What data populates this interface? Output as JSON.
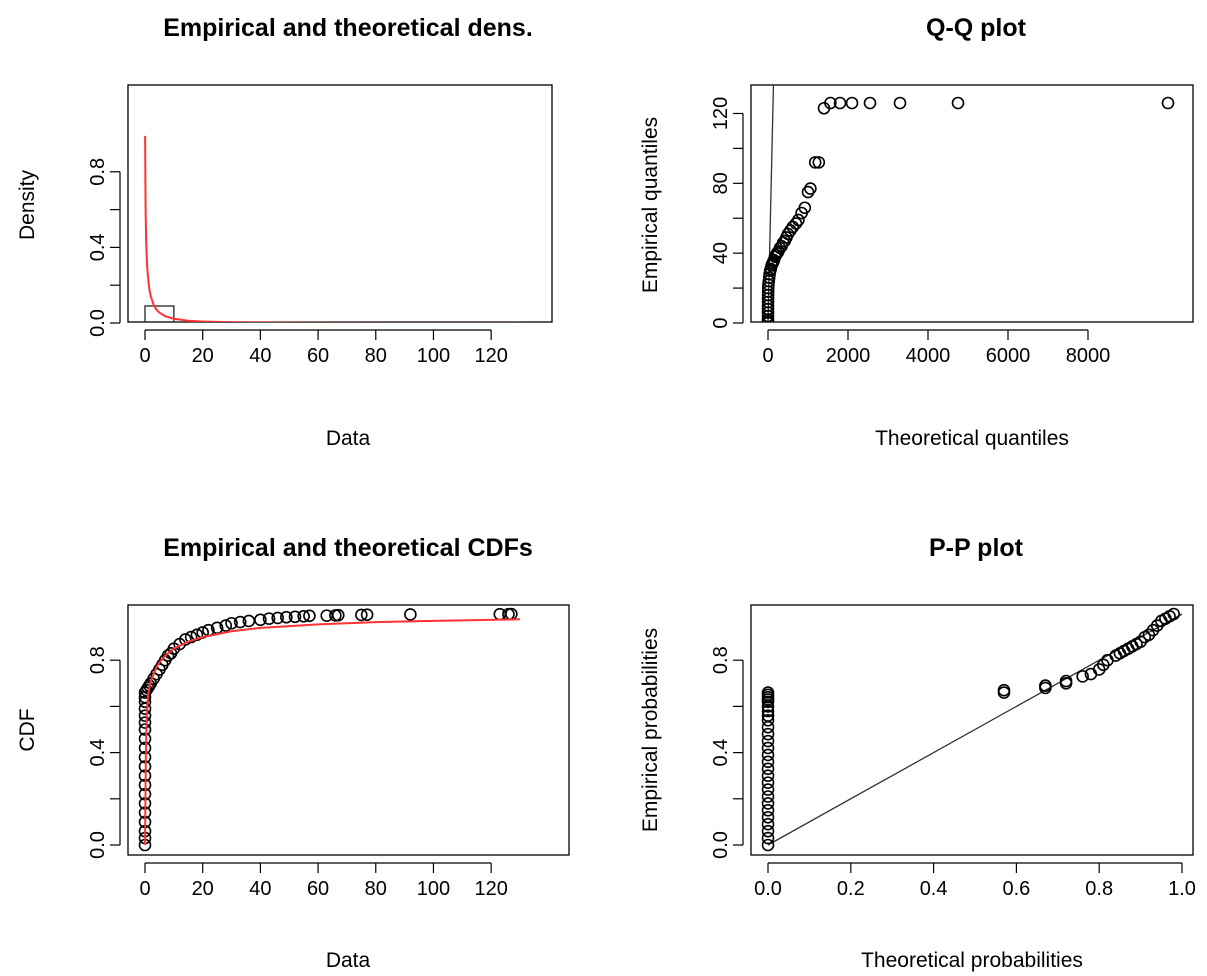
{
  "figure": {
    "panels": [
      {
        "id": "dens",
        "title": "Empirical and theoretical dens.",
        "xlabel": "Data",
        "ylabel": "Density"
      },
      {
        "id": "qq",
        "title": "Q-Q plot",
        "xlabel": "Theoretical quantiles",
        "ylabel": "Empirical quantiles"
      },
      {
        "id": "cdf",
        "title": "Empirical and theoretical CDFs",
        "xlabel": "Data",
        "ylabel": "CDF"
      },
      {
        "id": "pp",
        "title": "P-P plot",
        "xlabel": "Theoretical probabilities",
        "ylabel": "Empirical probabilities"
      }
    ]
  },
  "chart_data": [
    {
      "type": "line",
      "title": "Empirical and theoretical dens.",
      "xlabel": "Data",
      "ylabel": "Density",
      "xlim": [
        0,
        130
      ],
      "ylim": [
        0,
        1.0
      ],
      "xticks": [
        0,
        20,
        40,
        60,
        80,
        100,
        120
      ],
      "yticks": [
        0.0,
        0.4,
        0.8
      ],
      "ytick_labels": [
        "0.0",
        "0.4",
        "0.8"
      ],
      "grid": false,
      "histogram": {
        "bins": [
          [
            0,
            10,
            0.09
          ],
          [
            10,
            20,
            0.005
          ],
          [
            20,
            130,
            0.001
          ]
        ],
        "color": "#333333"
      },
      "series": [
        {
          "color": "#ff3333",
          "x": [
            0.05,
            0.2,
            0.4,
            0.7,
            1,
            1.5,
            2,
            3,
            4,
            5,
            7,
            10,
            15,
            20,
            30,
            40,
            60,
            80,
            100,
            130
          ],
          "y": [
            0.99,
            0.6,
            0.42,
            0.31,
            0.25,
            0.18,
            0.14,
            0.095,
            0.07,
            0.055,
            0.036,
            0.022,
            0.012,
            0.008,
            0.004,
            0.0025,
            0.0012,
            0.0007,
            0.0005,
            0.0003
          ]
        }
      ]
    },
    {
      "type": "scatter",
      "title": "Q-Q plot",
      "xlabel": "Theoretical quantiles",
      "ylabel": "Empirical quantiles",
      "xlim": [
        0,
        10000
      ],
      "ylim": [
        0,
        126
      ],
      "xticks": [
        0,
        2000,
        4000,
        6000,
        8000
      ],
      "yticks": [
        0,
        40,
        80,
        120
      ],
      "grid": false,
      "reference_line": {
        "slope": 1,
        "intercept": 0
      },
      "points": {
        "x": [
          0,
          0,
          0,
          0,
          0,
          0,
          0,
          1,
          1,
          2,
          3,
          5,
          10,
          20,
          30,
          40,
          55,
          70,
          90,
          110,
          130,
          150,
          175,
          200,
          230,
          260,
          300,
          340,
          380,
          420,
          460,
          500,
          560,
          620,
          700,
          760,
          840,
          920,
          1000,
          1060,
          1180,
          1270,
          1400,
          1560,
          1800,
          2100,
          2550,
          3300,
          4750,
          10000
        ],
        "y": [
          0,
          1,
          2,
          4,
          6,
          8,
          10,
          12,
          14,
          16,
          18,
          20,
          22,
          24,
          26,
          28,
          30,
          31,
          33,
          34,
          35,
          36,
          38,
          39,
          40,
          41,
          43,
          44,
          46,
          47,
          49,
          51,
          53,
          55,
          57,
          59,
          63,
          66,
          75,
          77,
          92,
          92,
          123,
          126,
          126,
          126,
          126,
          126,
          126,
          126
        ]
      }
    },
    {
      "type": "scatter",
      "title": "Empirical and theoretical CDFs",
      "xlabel": "Data",
      "ylabel": "CDF",
      "xlim": [
        0,
        130
      ],
      "ylim": [
        0,
        1.0
      ],
      "xticks": [
        0,
        20,
        40,
        60,
        80,
        100,
        120
      ],
      "yticks": [
        0.0,
        0.4,
        0.8
      ],
      "ytick_labels": [
        "0.0",
        "0.4",
        "0.8"
      ],
      "grid": false,
      "points": {
        "x": [
          0,
          0,
          0,
          0,
          0,
          0,
          0,
          0,
          0,
          0,
          0,
          0,
          0,
          0,
          0,
          0,
          0,
          0,
          0,
          0,
          0.5,
          1,
          1.5,
          2,
          3,
          4,
          5,
          6,
          7,
          8,
          9,
          10,
          12,
          14,
          16,
          18,
          20,
          22,
          25,
          28,
          30,
          33,
          36,
          40,
          43,
          46,
          49,
          52,
          55,
          57,
          63,
          66,
          67,
          75,
          77,
          92,
          123,
          126,
          127
        ],
        "y": [
          0.0,
          0.03,
          0.06,
          0.1,
          0.14,
          0.18,
          0.22,
          0.26,
          0.3,
          0.34,
          0.38,
          0.42,
          0.46,
          0.5,
          0.53,
          0.56,
          0.59,
          0.62,
          0.64,
          0.66,
          0.67,
          0.68,
          0.69,
          0.7,
          0.72,
          0.74,
          0.76,
          0.78,
          0.8,
          0.82,
          0.83,
          0.85,
          0.87,
          0.89,
          0.9,
          0.91,
          0.92,
          0.93,
          0.94,
          0.95,
          0.96,
          0.965,
          0.97,
          0.975,
          0.98,
          0.983,
          0.986,
          0.988,
          0.99,
          0.992,
          0.993,
          0.994,
          0.995,
          0.996,
          0.997,
          0.998,
          0.999,
          0.999,
          1.0
        ]
      },
      "series": [
        {
          "color": "#ff3333",
          "x": [
            0,
            0.3,
            0.6,
            1,
            1.5,
            2,
            3,
            4,
            5,
            7,
            10,
            15,
            20,
            30,
            40,
            60,
            80,
            100,
            130
          ],
          "y": [
            0.0,
            0.4,
            0.55,
            0.64,
            0.68,
            0.71,
            0.74,
            0.77,
            0.79,
            0.82,
            0.85,
            0.88,
            0.9,
            0.925,
            0.94,
            0.955,
            0.965,
            0.97,
            0.977
          ]
        }
      ]
    },
    {
      "type": "scatter",
      "title": "P-P plot",
      "xlabel": "Theoretical probabilities",
      "ylabel": "Empirical probabilities",
      "xlim": [
        0,
        1.0
      ],
      "ylim": [
        0,
        1.0
      ],
      "xticks": [
        0.0,
        0.2,
        0.4,
        0.6,
        0.8,
        1.0
      ],
      "xtick_labels": [
        "0.0",
        "0.2",
        "0.4",
        "0.6",
        "0.8",
        "1.0"
      ],
      "yticks": [
        0.0,
        0.4,
        0.8
      ],
      "ytick_labels": [
        "0.0",
        "0.4",
        "0.8"
      ],
      "grid": false,
      "reference_line": {
        "slope": 1,
        "intercept": 0
      },
      "points": {
        "x": [
          0,
          0,
          0,
          0,
          0,
          0,
          0,
          0,
          0,
          0,
          0,
          0,
          0,
          0,
          0,
          0,
          0,
          0,
          0,
          0,
          0,
          0,
          0,
          0,
          0,
          0,
          0,
          0.57,
          0.57,
          0.67,
          0.67,
          0.72,
          0.72,
          0.76,
          0.78,
          0.8,
          0.81,
          0.82,
          0.84,
          0.85,
          0.86,
          0.87,
          0.88,
          0.89,
          0.9,
          0.91,
          0.92,
          0.93,
          0.94,
          0.95,
          0.96,
          0.97,
          0.98
        ],
        "y": [
          0.0,
          0.03,
          0.06,
          0.09,
          0.12,
          0.15,
          0.18,
          0.21,
          0.24,
          0.27,
          0.3,
          0.33,
          0.36,
          0.39,
          0.42,
          0.45,
          0.48,
          0.51,
          0.54,
          0.56,
          0.58,
          0.6,
          0.62,
          0.63,
          0.64,
          0.65,
          0.66,
          0.66,
          0.67,
          0.68,
          0.69,
          0.7,
          0.71,
          0.73,
          0.74,
          0.76,
          0.78,
          0.8,
          0.82,
          0.83,
          0.84,
          0.85,
          0.86,
          0.87,
          0.88,
          0.9,
          0.91,
          0.93,
          0.95,
          0.97,
          0.98,
          0.99,
          1.0
        ]
      }
    }
  ]
}
